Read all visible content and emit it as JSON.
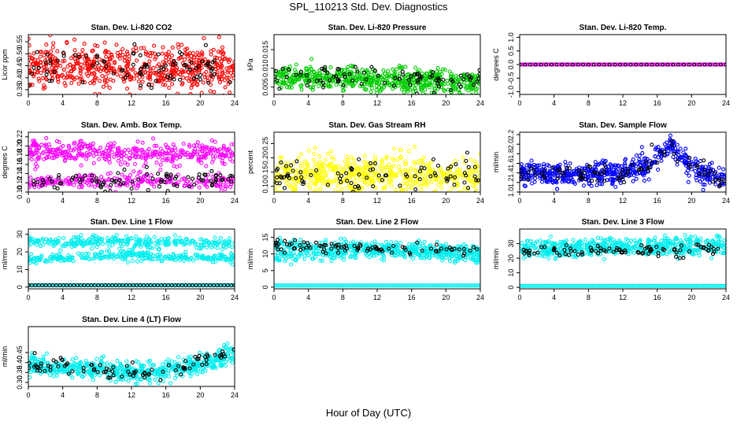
{
  "title": "SPL_110213  Std. Dev. Diagnostics",
  "xlabel": "Hour of Day (UTC)",
  "chart_data": [
    {
      "type": "scatter",
      "title": "Stan. Dev. Li-820 CO2",
      "ylabel": "Licor ppm",
      "xlim": [
        0,
        24
      ],
      "ylim": [
        0.33,
        0.58
      ],
      "xticks": [
        0,
        4,
        8,
        12,
        16,
        20,
        24
      ],
      "yticks": [
        0.35,
        0.4,
        0.45,
        0.5,
        0.55
      ],
      "ytick_labels": [
        "0.35",
        "0.40",
        "0.45",
        "0.50",
        "0.55"
      ],
      "series": [
        {
          "color": "#ff0000",
          "pattern": "band",
          "center": [
            [
              0,
              0.44
            ],
            [
              24,
              0.44
            ]
          ],
          "spread": 0.045,
          "n": 600
        },
        {
          "color": "#000000",
          "pattern": "band",
          "center": [
            [
              0,
              0.44
            ],
            [
              24,
              0.44
            ]
          ],
          "spread": 0.04,
          "n": 90
        }
      ]
    },
    {
      "type": "scatter",
      "title": "Stan. Dev. Li-820 Pressure",
      "ylabel": "kPa",
      "xlim": [
        0,
        24
      ],
      "ylim": [
        0.003,
        0.019
      ],
      "xticks": [
        0,
        4,
        8,
        12,
        16,
        20,
        24
      ],
      "yticks": [
        0.005,
        0.01,
        0.015
      ],
      "ytick_labels": [
        "0.005",
        "0.010",
        "0.015"
      ],
      "series": [
        {
          "color": "#00cc00",
          "pattern": "band",
          "center": [
            [
              0,
              0.0078
            ],
            [
              12,
              0.0068
            ],
            [
              24,
              0.006
            ]
          ],
          "spread": 0.0016,
          "n": 600
        },
        {
          "color": "#000000",
          "pattern": "band",
          "center": [
            [
              0,
              0.0078
            ],
            [
              24,
              0.0065
            ]
          ],
          "spread": 0.0014,
          "n": 90
        }
      ]
    },
    {
      "type": "scatter",
      "title": "Stan. Dev. Li-820 Temp.",
      "ylabel": "degrees C",
      "xlim": [
        0,
        24
      ],
      "ylim": [
        -1.1,
        1.1
      ],
      "xticks": [
        0,
        4,
        8,
        12,
        16,
        20,
        24
      ],
      "yticks": [
        -1.0,
        -0.5,
        0.0,
        0.5,
        1.0
      ],
      "ytick_labels": [
        "-1.0",
        "-0.5",
        "0.0",
        "0.5",
        "1.0"
      ],
      "series": [
        {
          "color": "#ff00ff",
          "pattern": "line",
          "center": [
            [
              0,
              0
            ],
            [
              24,
              0
            ]
          ],
          "spread": 0,
          "n": 140
        },
        {
          "color": "#000000",
          "pattern": "line",
          "center": [
            [
              0,
              0
            ],
            [
              24,
              0
            ]
          ],
          "spread": 0,
          "n": 40
        }
      ]
    },
    {
      "type": "scatter",
      "title": "Stan. Dev. Amb. Box Temp.",
      "ylabel": "degrees C",
      "xlim": [
        0,
        24
      ],
      "ylim": [
        0.1,
        0.23
      ],
      "xticks": [
        0,
        4,
        8,
        12,
        16,
        20,
        24
      ],
      "yticks": [
        0.1,
        0.12,
        0.14,
        0.16,
        0.18,
        0.2,
        0.22
      ],
      "ytick_labels": [
        "0.10",
        "0.12",
        "0.14",
        "0.16",
        "0.18",
        "0.20",
        "0.22"
      ],
      "series": [
        {
          "color": "#ff00ff",
          "pattern": "band",
          "center": [
            [
              0,
              0.19
            ],
            [
              24,
              0.18
            ]
          ],
          "spread": 0.012,
          "n": 400
        },
        {
          "color": "#ff00ff",
          "pattern": "band",
          "center": [
            [
              0,
              0.12
            ],
            [
              12,
              0.125
            ],
            [
              24,
              0.12
            ]
          ],
          "spread": 0.008,
          "n": 250
        },
        {
          "color": "#000000",
          "pattern": "band",
          "center": [
            [
              0,
              0.12
            ],
            [
              24,
              0.125
            ]
          ],
          "spread": 0.01,
          "n": 90
        }
      ]
    },
    {
      "type": "scatter",
      "title": "Stan. Dev. Gas Stream RH",
      "ylabel": "percent",
      "xlim": [
        0,
        24
      ],
      "ylim": [
        0.08,
        0.29
      ],
      "xticks": [
        0,
        4,
        8,
        12,
        16,
        20,
        24
      ],
      "yticks": [
        0.1,
        0.15,
        0.2,
        0.25
      ],
      "ytick_labels": [
        "0.10",
        "0.15",
        "0.20",
        "0.25"
      ],
      "series": [
        {
          "color": "#ffff00",
          "pattern": "band",
          "center": [
            [
              0,
              0.14
            ],
            [
              24,
              0.14
            ]
          ],
          "spread": 0.035,
          "n": 600
        },
        {
          "color": "#000000",
          "pattern": "band",
          "center": [
            [
              0,
              0.13
            ],
            [
              24,
              0.14
            ]
          ],
          "spread": 0.03,
          "n": 90
        }
      ]
    },
    {
      "type": "scatter",
      "title": "Stan. Dev. Sample Flow",
      "ylabel": "ml/min",
      "xlim": [
        0,
        24
      ],
      "ylim": [
        1.0,
        2.25
      ],
      "xticks": [
        0,
        4,
        8,
        12,
        16,
        20,
        24
      ],
      "yticks": [
        1.0,
        1.2,
        1.4,
        1.6,
        1.8,
        2.0,
        2.2
      ],
      "ytick_labels": [
        "1.0",
        "1.2",
        "1.4",
        "1.6",
        "1.8",
        "2.0",
        "2.2"
      ],
      "series": [
        {
          "color": "#0000ff",
          "pattern": "band",
          "center": [
            [
              0,
              1.4
            ],
            [
              6,
              1.35
            ],
            [
              12,
              1.4
            ],
            [
              15,
              1.55
            ],
            [
              17.5,
              2.0
            ],
            [
              20,
              1.5
            ],
            [
              24,
              1.25
            ]
          ],
          "spread": 0.12,
          "n": 600
        },
        {
          "color": "#000000",
          "pattern": "band",
          "center": [
            [
              0,
              1.4
            ],
            [
              6,
              1.35
            ],
            [
              12,
              1.4
            ],
            [
              15,
              1.55
            ],
            [
              17.5,
              1.95
            ],
            [
              20,
              1.5
            ],
            [
              24,
              1.25
            ]
          ],
          "spread": 0.1,
          "n": 90
        }
      ]
    },
    {
      "type": "scatter",
      "title": "Stan. Dev. Line 1 Flow",
      "ylabel": "ml/min",
      "xlim": [
        0,
        24
      ],
      "ylim": [
        -1,
        33
      ],
      "xticks": [
        0,
        4,
        8,
        12,
        16,
        20,
        24
      ],
      "yticks": [
        0,
        10,
        20,
        30
      ],
      "ytick_labels": [
        "0",
        "10",
        "20",
        "30"
      ],
      "series": [
        {
          "color": "#00eeee",
          "pattern": "band",
          "center": [
            [
              0,
              26
            ],
            [
              24,
              25
            ]
          ],
          "spread": 1.6,
          "n": 300
        },
        {
          "color": "#00eeee",
          "pattern": "band",
          "center": [
            [
              0,
              16
            ],
            [
              12,
              18
            ],
            [
              24,
              16
            ]
          ],
          "spread": 1.4,
          "n": 300
        },
        {
          "color": "#00eeee",
          "pattern": "line",
          "center": [
            [
              0,
              1
            ],
            [
              24,
              1
            ]
          ],
          "spread": 0,
          "n": 120
        },
        {
          "color": "#000000",
          "pattern": "line",
          "center": [
            [
              0,
              1
            ],
            [
              24,
              1
            ]
          ],
          "spread": 0,
          "n": 60
        }
      ]
    },
    {
      "type": "scatter",
      "title": "Stan. Dev. Line 2 Flow",
      "ylabel": "ml/min",
      "xlim": [
        0,
        24
      ],
      "ylim": [
        -0.5,
        17.5
      ],
      "xticks": [
        0,
        4,
        8,
        12,
        16,
        20,
        24
      ],
      "yticks": [
        0,
        5,
        10,
        15
      ],
      "ytick_labels": [
        "0",
        "5",
        "10",
        "15"
      ],
      "series": [
        {
          "color": "#00eeee",
          "pattern": "band",
          "center": [
            [
              0,
              12.5
            ],
            [
              24,
              11
            ]
          ],
          "spread": 1,
          "n": 300
        },
        {
          "color": "#00eeee",
          "pattern": "band",
          "center": [
            [
              0,
              9
            ],
            [
              12,
              11
            ],
            [
              24,
              9
            ]
          ],
          "spread": 1,
          "n": 300
        },
        {
          "color": "#00eeee",
          "pattern": "line",
          "center": [
            [
              0,
              0.5
            ],
            [
              24,
              0.5
            ]
          ],
          "spread": 0,
          "n": 140
        },
        {
          "color": "#000000",
          "pattern": "band",
          "center": [
            [
              0,
              12.5
            ],
            [
              24,
              11
            ]
          ],
          "spread": 0.8,
          "n": 90
        }
      ]
    },
    {
      "type": "scatter",
      "title": "Stan. Dev. Line 3 Flow",
      "ylabel": "ml/min",
      "xlim": [
        0,
        24
      ],
      "ylim": [
        -1,
        40
      ],
      "xticks": [
        0,
        4,
        8,
        12,
        16,
        20,
        24
      ],
      "yticks": [
        0,
        10,
        20,
        30
      ],
      "ytick_labels": [
        "0",
        "10",
        "20",
        "30"
      ],
      "series": [
        {
          "color": "#00eeee",
          "pattern": "band",
          "center": [
            [
              0,
              26
            ],
            [
              24,
              29
            ]
          ],
          "spread": 3,
          "n": 600
        },
        {
          "color": "#00eeee",
          "pattern": "line",
          "center": [
            [
              0,
              1
            ],
            [
              24,
              1
            ]
          ],
          "spread": 0,
          "n": 140
        },
        {
          "color": "#000000",
          "pattern": "band",
          "center": [
            [
              0,
              25
            ],
            [
              24,
              25
            ]
          ],
          "spread": 2,
          "n": 90
        }
      ]
    },
    {
      "type": "scatter",
      "title": "Stan. Dev. Line 4 (LT) Flow",
      "ylabel": "ml/min",
      "xlim": [
        0,
        24
      ],
      "ylim": [
        0.28,
        0.58
      ],
      "xticks": [
        0,
        4,
        8,
        12,
        16,
        20,
        24
      ],
      "yticks": [
        0.3,
        0.35,
        0.4,
        0.45
      ],
      "ytick_labels": [
        "0.30",
        "0.35",
        "0.40",
        "0.45"
      ],
      "series": [
        {
          "color": "#00eeee",
          "pattern": "band",
          "center": [
            [
              0,
              0.39
            ],
            [
              6,
              0.37
            ],
            [
              12,
              0.35
            ],
            [
              16,
              0.36
            ],
            [
              20,
              0.39
            ],
            [
              24,
              0.44
            ]
          ],
          "spread": 0.025,
          "n": 600
        },
        {
          "color": "#000000",
          "pattern": "band",
          "center": [
            [
              0,
              0.39
            ],
            [
              6,
              0.37
            ],
            [
              12,
              0.35
            ],
            [
              16,
              0.37
            ],
            [
              20,
              0.4
            ],
            [
              24,
              0.45
            ]
          ],
          "spread": 0.02,
          "n": 90
        }
      ]
    }
  ]
}
